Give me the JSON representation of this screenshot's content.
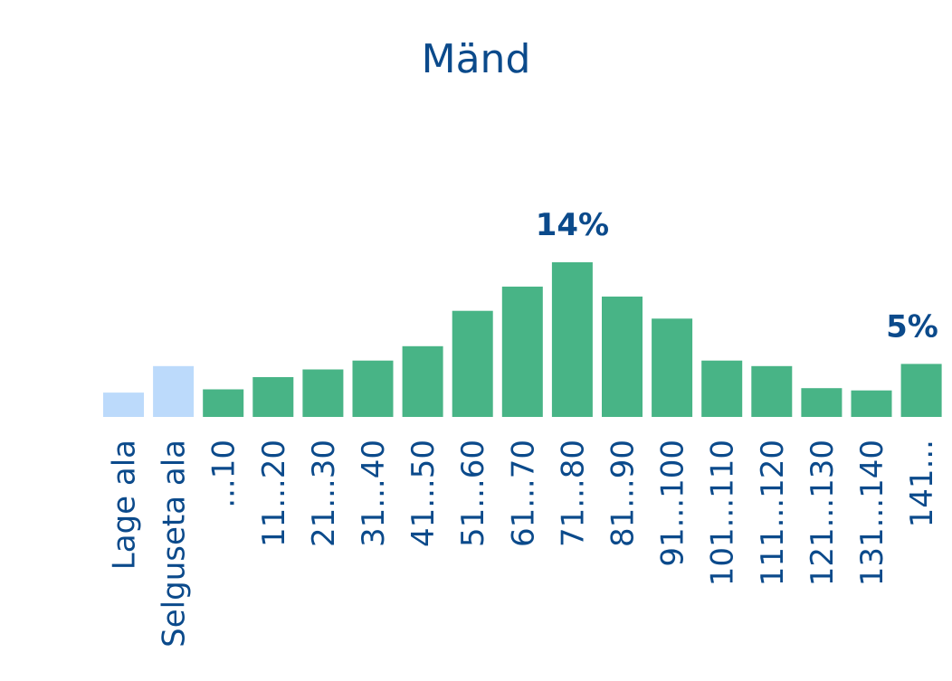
{
  "chart_data": {
    "type": "bar",
    "title": "Mänd",
    "xlabel": "",
    "ylabel": "",
    "ylim": [
      0,
      14
    ],
    "grid": false,
    "legend": "none",
    "categories": [
      "Lage ala",
      "Selguseta ala",
      "...10",
      "11...20",
      "21...30",
      "31...40",
      "41...50",
      "51...60",
      "61...70",
      "71...80",
      "81...90",
      "91...100",
      "101...110",
      "111...120",
      "121...130",
      "131...140",
      "141..."
    ],
    "values": [
      2.2,
      4.6,
      2.5,
      3.6,
      4.3,
      5.1,
      6.4,
      9.6,
      11.8,
      14,
      10.9,
      8.9,
      5.1,
      4.6,
      2.6,
      2.4,
      4.8
    ],
    "bar_kinds": [
      "light",
      "light",
      "main",
      "main",
      "main",
      "main",
      "main",
      "main",
      "main",
      "main",
      "main",
      "main",
      "main",
      "main",
      "main",
      "main",
      "main"
    ],
    "data_labels": [
      {
        "index": 9,
        "text": "14%"
      },
      {
        "index": 16,
        "text": "5%"
      }
    ],
    "colors": {
      "main": "#48b486",
      "light": "#bcdafb",
      "text": "#0b4a8b"
    }
  }
}
